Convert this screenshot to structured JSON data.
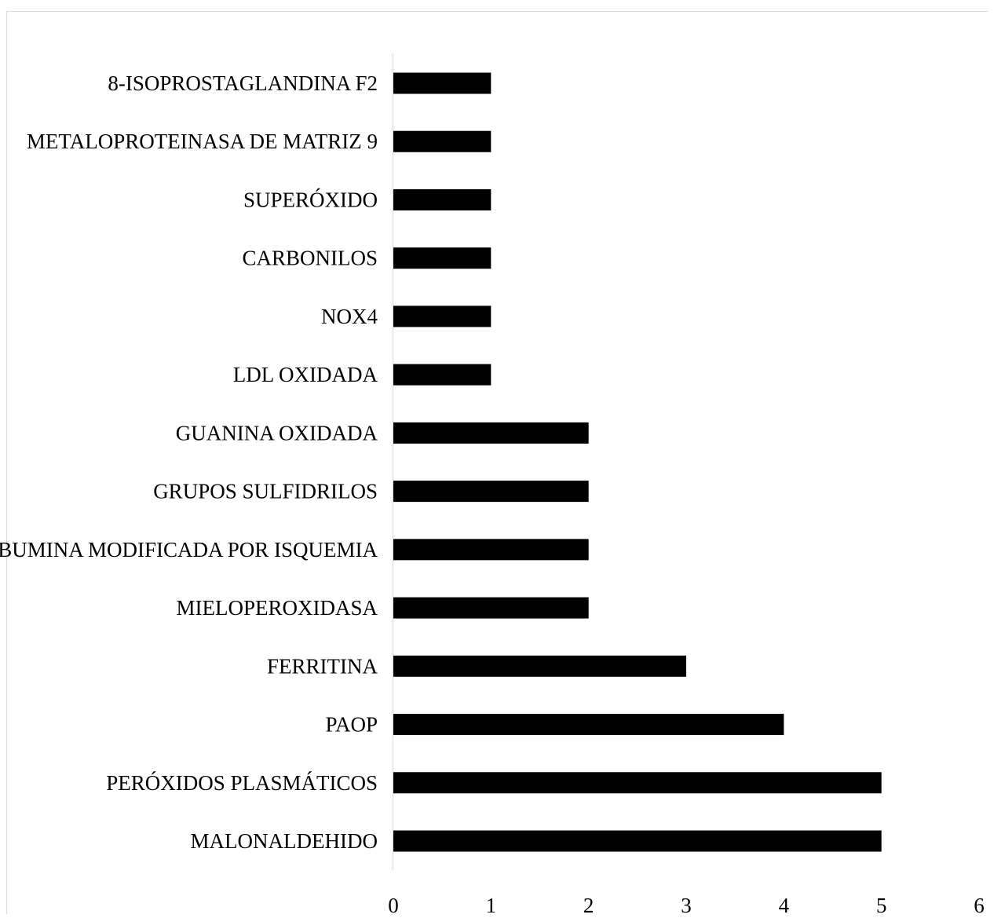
{
  "chart_data": {
    "type": "bar",
    "orientation": "horizontal",
    "title": "",
    "xlabel": "",
    "ylabel": "",
    "categories": [
      "8-ISOPROSTAGLANDINA F2",
      "METALOPROTEINASA DE MATRIZ 9",
      "SUPERÓXIDO",
      "CARBONILOS",
      "NOX4",
      "LDL OXIDADA",
      "GUANINA OXIDADA",
      "GRUPOS SULFIDRILOS",
      "ALBUMINA MODIFICADA POR ISQUEMIA",
      "MIELOPEROXIDASA",
      "FERRITINA",
      "PAOP",
      "PERÓXIDOS PLASMÁTICOS",
      "MALONALDEHIDO"
    ],
    "values": [
      1,
      1,
      1,
      1,
      1,
      1,
      2,
      2,
      2,
      2,
      3,
      4,
      5,
      5
    ],
    "xlim": [
      0,
      6
    ],
    "xticks": [
      "0",
      "1",
      "2",
      "3",
      "4",
      "5",
      "6"
    ],
    "grid": false,
    "legend": "none",
    "bar_color": "#000000",
    "axis_color": "#d9d9d9"
  }
}
